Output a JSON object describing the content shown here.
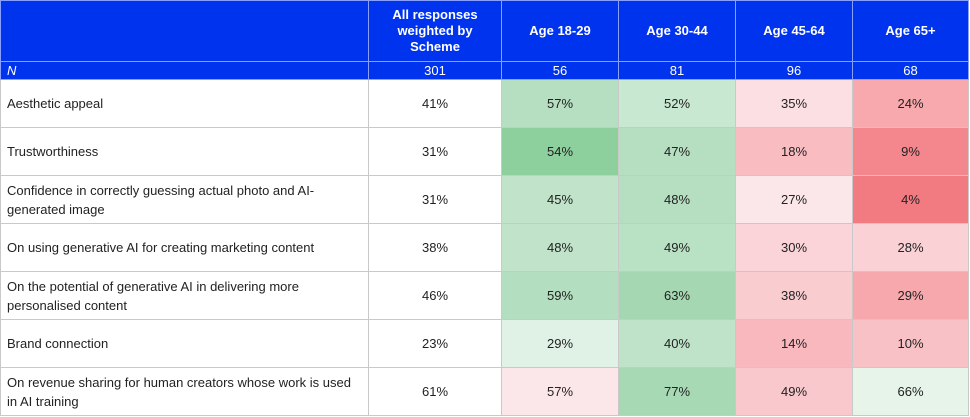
{
  "chart_data": {
    "type": "table",
    "columns": [
      "",
      "All responses weighted by Scheme",
      "Age 18-29",
      "Age 30-44",
      "Age 45-64",
      "Age 65+"
    ],
    "n_label": "N",
    "n_values": [
      "301",
      "56",
      "81",
      "96",
      "68"
    ],
    "rows": [
      {
        "label": "Aesthetic appeal",
        "values": [
          "41%",
          "57%",
          "52%",
          "35%",
          "24%"
        ]
      },
      {
        "label": "Trustworthiness",
        "values": [
          "31%",
          "54%",
          "47%",
          "18%",
          "9%"
        ]
      },
      {
        "label": "Confidence in correctly guessing actual photo and AI-generated image",
        "values": [
          "31%",
          "45%",
          "48%",
          "27%",
          "4%"
        ]
      },
      {
        "label": "On using generative AI for creating marketing content",
        "values": [
          "38%",
          "48%",
          "49%",
          "30%",
          "28%"
        ]
      },
      {
        "label": "On the potential of generative AI in delivering more personalised content",
        "values": [
          "46%",
          "59%",
          "63%",
          "38%",
          "29%"
        ]
      },
      {
        "label": "Brand connection",
        "values": [
          "23%",
          "29%",
          "40%",
          "14%",
          "10%"
        ]
      },
      {
        "label": "On revenue sharing for human creators whose work is used in AI training",
        "values": [
          "61%",
          "57%",
          "77%",
          "49%",
          "66%"
        ]
      }
    ],
    "cell_colors": [
      [
        "#ffffff",
        "#b5dfc0",
        "#c9e8d1",
        "#fbdfe2",
        "#f7a9ae"
      ],
      [
        "#ffffff",
        "#8ecf9e",
        "#b5dfc0",
        "#f8bcc1",
        "#f4868d"
      ],
      [
        "#ffffff",
        "#c0e3ca",
        "#b5dfc0",
        "#fbe7e9",
        "#f27a81"
      ],
      [
        "#ffffff",
        "#c0e3ca",
        "#b9e1c4",
        "#fad4d8",
        "#fad1d5"
      ],
      [
        "#ffffff",
        "#b3debf",
        "#a5d8b2",
        "#f9ccd0",
        "#f7a8ad"
      ],
      [
        "#ffffff",
        "#e0f2e5",
        "#bfe3c9",
        "#f8b8bd",
        "#f8c1c6"
      ],
      [
        "#ffffff",
        "#fbe7e9",
        "#a8d9b5",
        "#f9c8cc",
        "#e6f4ea"
      ]
    ],
    "header_color": "#0033ee"
  }
}
